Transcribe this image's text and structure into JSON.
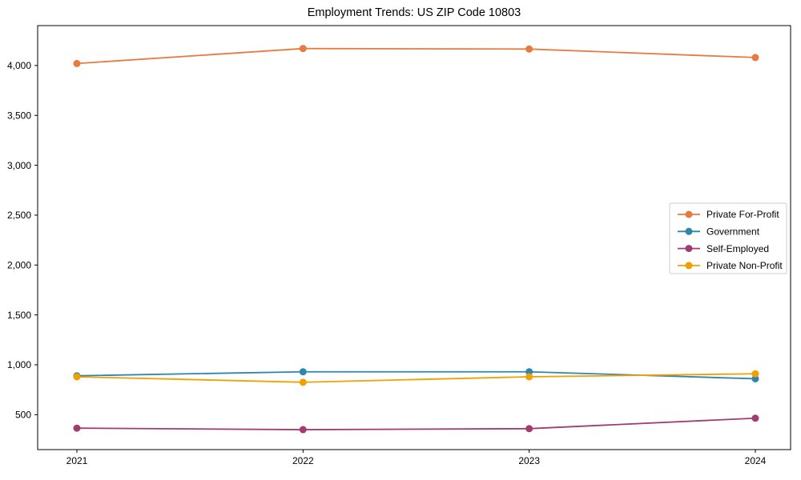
{
  "chart_data": {
    "type": "line",
    "title": "Employment Trends: US ZIP Code 10803",
    "categories": [
      "2021",
      "2022",
      "2023",
      "2024"
    ],
    "series": [
      {
        "name": "Private For-Profit",
        "color": "#E87A3E",
        "values": [
          4020,
          4170,
          4165,
          4080
        ]
      },
      {
        "name": "Government",
        "color": "#2E86AB",
        "values": [
          890,
          930,
          930,
          860
        ]
      },
      {
        "name": "Self-Employed",
        "color": "#A23B72",
        "values": [
          365,
          350,
          360,
          465
        ]
      },
      {
        "name": "Private Non-Profit",
        "color": "#F0A000",
        "values": [
          880,
          825,
          880,
          910
        ]
      }
    ],
    "xlabel": "",
    "ylabel": "",
    "ylim": [
      150,
      4400
    ],
    "yticks": [
      500,
      1000,
      1500,
      2000,
      2500,
      3000,
      3500,
      4000
    ],
    "grid": false,
    "legend_position": "center right",
    "axis_color": "#000000",
    "legend_border_color": "#cccccc",
    "background_color": "#ffffff"
  }
}
